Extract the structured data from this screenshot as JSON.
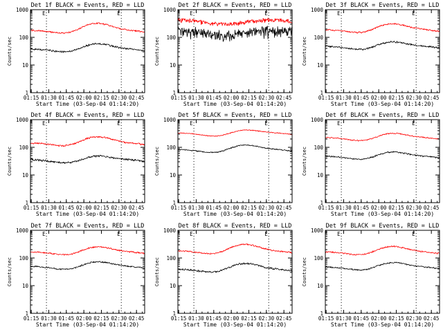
{
  "colors": {
    "events": "#000000",
    "lld": "#ff0000",
    "background": "#ffffff",
    "axes": "#000000"
  },
  "chart_data": [
    {
      "type": "line",
      "title": "Det 1f BLACK = Events, RED = LLD",
      "xlabel": "Start Time (03-Sep-04 01:14:20)",
      "ylabel": "Counts/sec",
      "y_scale": "log",
      "ylim": [
        1,
        1000
      ],
      "xlim": [
        "01:14:20",
        "02:52:00"
      ],
      "x_ticks": [
        "01:15",
        "01:30",
        "01:45",
        "02:00",
        "02:15",
        "02:30",
        "02:45"
      ],
      "y_ticks": [
        "1",
        "10",
        "100",
        "1000"
      ],
      "markers": [
        {
          "label": "E",
          "time": "01:28"
        },
        {
          "label": "E",
          "time": "02:32"
        }
      ],
      "vertical_lines": [
        "01:28",
        "02:32"
      ],
      "series": [
        {
          "color": "#000000",
          "base": 32,
          "bump": 60,
          "peak_time": "02:10",
          "noise": 0.06
        },
        {
          "color": "#ff0000",
          "base": 150,
          "bump": 330,
          "peak_time": "02:10",
          "noise": 0.05
        }
      ]
    },
    {
      "type": "line",
      "title": "Det 2f BLACK = Events, RED = LLD",
      "xlabel": "Start Time (03-Sep-04 01:14:20)",
      "ylabel": "Counts/sec",
      "y_scale": "log",
      "ylim": [
        1,
        1000
      ],
      "xlim": [
        "01:14:20",
        "02:52:00"
      ],
      "x_ticks": [
        "01:15",
        "01:30",
        "01:45",
        "02:00",
        "02:15",
        "02:30",
        "02:45"
      ],
      "y_ticks": [
        "1",
        "10",
        "100",
        "1000"
      ],
      "markers": [
        {
          "label": "E",
          "time": "01:28"
        },
        {
          "label": "E",
          "time": "02:32"
        }
      ],
      "vertical_lines": [
        "01:28",
        "02:32"
      ],
      "series": [
        {
          "color": "#000000",
          "base": 150,
          "bump": 150,
          "peak_time": "02:10",
          "noise": 0.35
        },
        {
          "color": "#ff0000",
          "base": 360,
          "bump": 360,
          "peak_time": "02:10",
          "noise": 0.14
        }
      ]
    },
    {
      "type": "line",
      "title": "Det 3f BLACK = Events, RED = LLD",
      "xlabel": "Start Time (03-Sep-04 01:14:20)",
      "ylabel": "Counts/sec",
      "y_scale": "log",
      "ylim": [
        1,
        1000
      ],
      "xlim": [
        "01:14:20",
        "02:52:00"
      ],
      "x_ticks": [
        "01:15",
        "01:30",
        "01:45",
        "02:00",
        "02:15",
        "02:30",
        "02:45"
      ],
      "y_ticks": [
        "1",
        "10",
        "100",
        "1000"
      ],
      "markers": [
        {
          "label": "E",
          "time": "01:28"
        },
        {
          "label": "E",
          "time": "02:32"
        }
      ],
      "vertical_lines": [
        "01:28",
        "02:32"
      ],
      "series": [
        {
          "color": "#000000",
          "base": 40,
          "bump": 70,
          "peak_time": "02:10",
          "noise": 0.06
        },
        {
          "color": "#ff0000",
          "base": 160,
          "bump": 320,
          "peak_time": "02:10",
          "noise": 0.05
        }
      ]
    },
    {
      "type": "line",
      "title": "Det 4f BLACK = Events, RED = LLD",
      "xlabel": "Start Time (03-Sep-04 01:14:20)",
      "ylabel": "Counts/sec",
      "y_scale": "log",
      "ylim": [
        1,
        1000
      ],
      "xlim": [
        "01:14:20",
        "02:52:00"
      ],
      "x_ticks": [
        "01:15",
        "01:30",
        "01:45",
        "02:00",
        "02:15",
        "02:30",
        "02:45"
      ],
      "y_ticks": [
        "1",
        "10",
        "100",
        "1000"
      ],
      "markers": [
        {
          "label": "E",
          "time": "01:28"
        },
        {
          "label": "E",
          "time": "02:32"
        }
      ],
      "vertical_lines": [
        "01:28",
        "02:32"
      ],
      "series": [
        {
          "color": "#000000",
          "base": 30,
          "bump": 50,
          "peak_time": "02:10",
          "noise": 0.07
        },
        {
          "color": "#ff0000",
          "base": 120,
          "bump": 250,
          "peak_time": "02:10",
          "noise": 0.06
        }
      ]
    },
    {
      "type": "line",
      "title": "Det 5f BLACK = Events, RED = LLD",
      "xlabel": "Start Time (03-Sep-04 01:14:20)",
      "ylabel": "Counts/sec",
      "y_scale": "log",
      "ylim": [
        1,
        1000
      ],
      "xlim": [
        "01:14:20",
        "02:52:00"
      ],
      "x_ticks": [
        "01:15",
        "01:30",
        "01:45",
        "02:00",
        "02:15",
        "02:30",
        "02:45"
      ],
      "y_ticks": [
        "1",
        "10",
        "100",
        "1000"
      ],
      "markers": [
        {
          "label": "E",
          "time": "01:28"
        },
        {
          "label": "E",
          "time": "02:32"
        }
      ],
      "vertical_lines": [
        "01:28",
        "02:32"
      ],
      "series": [
        {
          "color": "#000000",
          "base": 70,
          "bump": 125,
          "peak_time": "02:10",
          "noise": 0.04
        },
        {
          "color": "#ff0000",
          "base": 280,
          "bump": 430,
          "peak_time": "02:10",
          "noise": 0.03
        }
      ]
    },
    {
      "type": "line",
      "title": "Det 6f BLACK = Events, RED = LLD",
      "xlabel": "Start Time (03-Sep-04 01:14:20)",
      "ylabel": "Counts/sec",
      "y_scale": "log",
      "ylim": [
        1,
        1000
      ],
      "xlim": [
        "01:14:20",
        "02:52:00"
      ],
      "x_ticks": [
        "01:15",
        "01:30",
        "01:45",
        "02:00",
        "02:15",
        "02:30",
        "02:45"
      ],
      "y_ticks": [
        "1",
        "10",
        "100",
        "1000"
      ],
      "markers": [
        {
          "label": "E",
          "time": "01:28"
        },
        {
          "label": "E",
          "time": "02:32"
        }
      ],
      "vertical_lines": [
        "01:28",
        "02:32"
      ],
      "series": [
        {
          "color": "#000000",
          "base": 40,
          "bump": 70,
          "peak_time": "02:10",
          "noise": 0.05
        },
        {
          "color": "#ff0000",
          "base": 190,
          "bump": 330,
          "peak_time": "02:10",
          "noise": 0.04
        }
      ]
    },
    {
      "type": "line",
      "title": "Det 7f BLACK = Events, RED = LLD",
      "xlabel": "Start Time (03-Sep-04 01:14:20)",
      "ylabel": "Counts/sec",
      "y_scale": "log",
      "ylim": [
        1,
        1000
      ],
      "xlim": [
        "01:14:20",
        "02:52:00"
      ],
      "x_ticks": [
        "01:15",
        "01:30",
        "01:45",
        "02:00",
        "02:15",
        "02:30",
        "02:45"
      ],
      "y_ticks": [
        "1",
        "10",
        "100",
        "1000"
      ],
      "markers": [
        {
          "label": "E",
          "time": "01:28"
        },
        {
          "label": "E",
          "time": "02:32"
        }
      ],
      "vertical_lines": [
        "01:28",
        "02:32"
      ],
      "series": [
        {
          "color": "#000000",
          "base": 42,
          "bump": 75,
          "peak_time": "02:10",
          "noise": 0.05
        },
        {
          "color": "#ff0000",
          "base": 140,
          "bump": 260,
          "peak_time": "02:10",
          "noise": 0.05
        }
      ]
    },
    {
      "type": "line",
      "title": "Det 8f BLACK = Events, RED = LLD",
      "xlabel": "Start Time (03-Sep-04 01:14:20)",
      "ylabel": "Counts/sec",
      "y_scale": "log",
      "ylim": [
        1,
        1000
      ],
      "xlim": [
        "01:14:20",
        "02:52:00"
      ],
      "x_ticks": [
        "01:15",
        "01:30",
        "01:45",
        "02:00",
        "02:15",
        "02:30",
        "02:45"
      ],
      "y_ticks": [
        "1",
        "10",
        "100",
        "1000"
      ],
      "markers": [
        {
          "label": "E",
          "time": "01:28"
        },
        {
          "label": "E",
          "time": "02:32"
        }
      ],
      "vertical_lines": [
        "01:28",
        "02:32"
      ],
      "series": [
        {
          "color": "#000000",
          "base": 33,
          "bump": 65,
          "peak_time": "02:10",
          "noise": 0.06
        },
        {
          "color": "#ff0000",
          "base": 150,
          "bump": 320,
          "peak_time": "02:10",
          "noise": 0.05
        }
      ]
    },
    {
      "type": "line",
      "title": "Det 9f BLACK = Events, RED = LLD",
      "xlabel": "Start Time (03-Sep-04 01:14:20)",
      "ylabel": "Counts/sec",
      "y_scale": "log",
      "ylim": [
        1,
        1000
      ],
      "xlim": [
        "01:14:20",
        "02:52:00"
      ],
      "x_ticks": [
        "01:15",
        "01:30",
        "01:45",
        "02:00",
        "02:15",
        "02:30",
        "02:45"
      ],
      "y_ticks": [
        "1",
        "10",
        "100",
        "1000"
      ],
      "markers": [
        {
          "label": "E",
          "time": "01:28"
        },
        {
          "label": "E",
          "time": "02:32"
        }
      ],
      "vertical_lines": [
        "01:28",
        "02:32"
      ],
      "series": [
        {
          "color": "#000000",
          "base": 40,
          "bump": 70,
          "peak_time": "02:10",
          "noise": 0.05
        },
        {
          "color": "#ff0000",
          "base": 140,
          "bump": 270,
          "peak_time": "02:10",
          "noise": 0.05
        }
      ]
    }
  ]
}
